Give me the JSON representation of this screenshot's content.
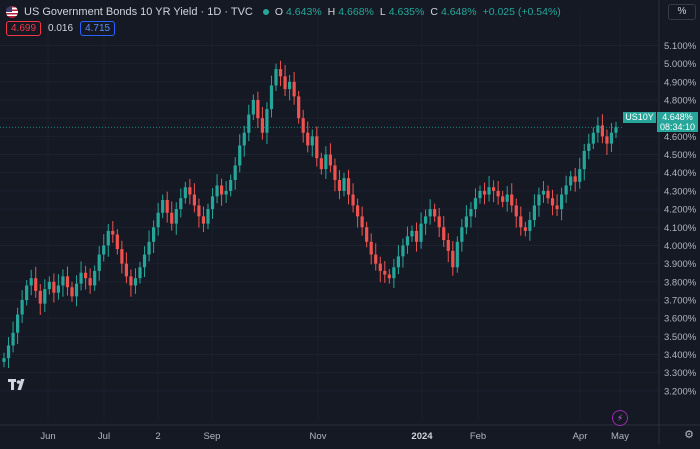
{
  "header": {
    "title": "US Government Bonds 10 YR Yield · 1D · TVC",
    "ohlc": [
      {
        "key": "O",
        "value": "4.643%"
      },
      {
        "key": "H",
        "value": "4.668%"
      },
      {
        "key": "L",
        "value": "4.635%"
      },
      {
        "key": "C",
        "value": "4.648%"
      },
      {
        "key": "",
        "value": "+0.025 (+0.54%)"
      }
    ],
    "bid": "4.699",
    "spread": "0.016",
    "ask": "4.715",
    "percent_toggle": "%"
  },
  "price_tag": {
    "symbol": "US10Y",
    "price": "4.648%",
    "countdown": "08:34:10"
  },
  "colors": {
    "up": "#26a69a",
    "down": "#ef5350",
    "background": "#151924",
    "grid": "#232632"
  },
  "icons": {
    "logo": "tradingview-logo",
    "flag": "us-flag-icon",
    "alert": "lightning-icon",
    "settings": "gear-icon"
  },
  "chart_data": {
    "type": "candlestick",
    "yaxis": {
      "labels": [
        "5.100%",
        "5.000%",
        "4.900%",
        "4.800%",
        "4.700%",
        "4.600%",
        "4.500%",
        "4.400%",
        "4.300%",
        "4.200%",
        "4.100%",
        "4.000%",
        "3.900%",
        "3.800%",
        "3.700%",
        "3.600%",
        "3.500%",
        "3.400%",
        "3.300%",
        "3.200%"
      ],
      "min": 3.15,
      "max": 5.13
    },
    "xaxis": {
      "labels": [
        {
          "text": "Jun",
          "bold": false
        },
        {
          "text": "Jul",
          "bold": false
        },
        {
          "text": "2",
          "bold": false
        },
        {
          "text": "Sep",
          "bold": false
        },
        {
          "text": "Nov",
          "bold": false
        },
        {
          "text": "2024",
          "bold": true
        },
        {
          "text": "Feb",
          "bold": false
        },
        {
          "text": "Apr",
          "bold": false
        },
        {
          "text": "May",
          "bold": false
        }
      ]
    },
    "close_series": [
      3.38,
      3.45,
      3.52,
      3.62,
      3.7,
      3.78,
      3.82,
      3.75,
      3.68,
      3.76,
      3.8,
      3.74,
      3.78,
      3.83,
      3.77,
      3.72,
      3.79,
      3.85,
      3.82,
      3.78,
      3.86,
      3.95,
      4.0,
      4.08,
      4.06,
      3.98,
      3.9,
      3.83,
      3.78,
      3.82,
      3.88,
      3.95,
      4.02,
      4.1,
      4.18,
      4.25,
      4.18,
      4.12,
      4.2,
      4.26,
      4.32,
      4.28,
      4.22,
      4.16,
      4.12,
      4.2,
      4.27,
      4.33,
      4.28,
      4.3,
      4.36,
      4.44,
      4.55,
      4.62,
      4.72,
      4.8,
      4.7,
      4.62,
      4.75,
      4.88,
      4.97,
      4.93,
      4.86,
      4.9,
      4.82,
      4.7,
      4.62,
      4.55,
      4.6,
      4.48,
      4.42,
      4.5,
      4.44,
      4.36,
      4.3,
      4.37,
      4.28,
      4.22,
      4.16,
      4.1,
      4.02,
      3.95,
      3.9,
      3.86,
      3.84,
      3.82,
      3.88,
      3.94,
      4.0,
      4.05,
      4.08,
      4.02,
      4.12,
      4.16,
      4.2,
      4.16,
      4.1,
      4.03,
      3.97,
      3.88,
      4.02,
      4.1,
      4.16,
      4.2,
      4.26,
      4.3,
      4.28,
      4.32,
      4.3,
      4.27,
      4.24,
      4.28,
      4.22,
      4.16,
      4.1,
      4.08,
      4.14,
      4.22,
      4.28,
      4.3,
      4.26,
      4.22,
      4.2,
      4.28,
      4.33,
      4.38,
      4.35,
      4.42,
      4.52,
      4.56,
      4.62,
      4.66,
      4.6,
      4.56,
      4.62,
      4.65
    ]
  }
}
